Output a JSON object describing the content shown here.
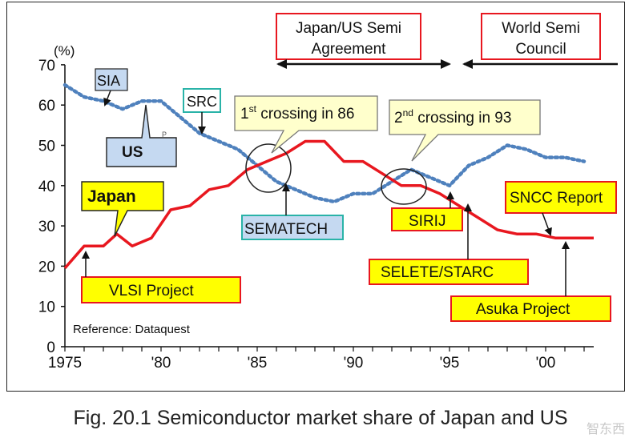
{
  "chart_data": {
    "type": "line",
    "unit_label": "(%)",
    "reference": "Reference: Dataquest",
    "x_ticks": [
      "1975",
      "'80",
      "'85",
      "'90",
      "'95",
      "'00"
    ],
    "y_ticks": [
      "0",
      "10",
      "20",
      "30",
      "40",
      "50",
      "60",
      "70"
    ],
    "xlim": [
      1975,
      2002.5
    ],
    "ylim": [
      0,
      70
    ],
    "series": [
      {
        "key": "us",
        "style": "dotted",
        "color": "#4f81bd",
        "x": [
          1975,
          1976,
          1977,
          1978,
          1979,
          1980,
          1981,
          1982,
          1983,
          1984,
          1985,
          1986,
          1987,
          1988,
          1989,
          1990,
          1991,
          1992,
          1993,
          1994,
          1995,
          1996,
          1997,
          1998,
          1999,
          2000,
          2001,
          2002
        ],
        "y": [
          65,
          62,
          61,
          59,
          61,
          61,
          57,
          53,
          51,
          49,
          45,
          41,
          39,
          37,
          36,
          38,
          38,
          41,
          44,
          42,
          40,
          45,
          47,
          50,
          49,
          47,
          47,
          46
        ]
      },
      {
        "key": "japan",
        "style": "solid",
        "color": "#e8171f",
        "x": [
          1975,
          1976,
          1977,
          1977.7,
          1978.5,
          1979.5,
          1980.5,
          1981.5,
          1982.5,
          1983.5,
          1984.5,
          1985.5,
          1986.5,
          1987.5,
          1988.5,
          1989.5,
          1990.5,
          1991.5,
          1992.5,
          1993.5,
          1994.5,
          1995.5,
          1996.5,
          1997.5,
          1998.5,
          1999.5,
          2000.5,
          2001.5,
          2002.5
        ],
        "y": [
          19.5,
          25,
          25,
          28,
          25,
          27,
          34,
          35,
          39,
          40,
          44,
          46,
          48,
          51,
          51,
          46,
          46,
          43,
          40,
          40,
          38,
          35,
          32,
          29,
          28,
          28,
          27,
          27,
          27
        ]
      }
    ],
    "labels": {
      "us": "US",
      "japan": "Japan",
      "sia": "SIA",
      "src": "SRC",
      "sematech": "SEMATECH",
      "vlsi": "VLSI Project",
      "sirij": "SIRIJ",
      "selete": "SELETE/STARC",
      "sncc": "SNCC  Report",
      "asuka": "Asuka Project",
      "agreement_line1": "Japan/US  Semi",
      "agreement_line2": "Agreement",
      "council_line1": "World Semi",
      "council_line2": "Council",
      "cross1_pre": "1",
      "cross1_sup": "st",
      "cross1_post": "  crossing in 86",
      "cross2_pre": "2",
      "cross2_sup": "nd",
      "cross2_post": " crossing in 93",
      "p_mark": "P"
    }
  },
  "caption": "Fig. 20.1 Semiconductor market share of Japan and US",
  "watermark": "智东西"
}
